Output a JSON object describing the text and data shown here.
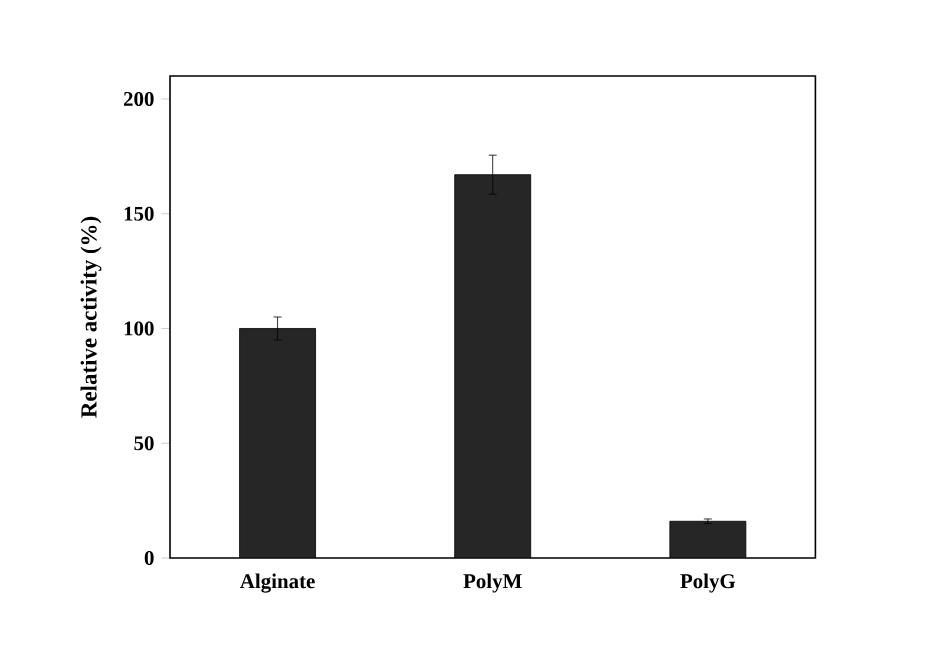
{
  "chart_data": {
    "type": "bar",
    "ylabel": "Relative activity (%)",
    "categories": [
      "Alginate",
      "PolyM",
      "PolyG"
    ],
    "values": [
      100,
      167,
      16
    ],
    "errors": [
      5,
      8.5,
      1
    ],
    "color": "#262626",
    "ylim": [
      0,
      210
    ],
    "yticks": [
      0,
      50,
      100,
      150,
      200
    ],
    "grid": false
  }
}
